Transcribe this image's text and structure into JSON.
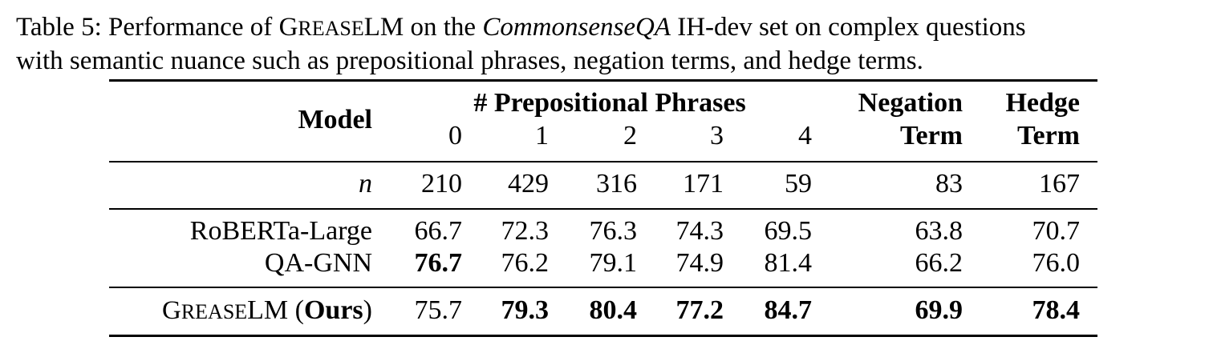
{
  "caption": {
    "prefix": "Table 5:  Performance of ",
    "model_name_G": "G",
    "model_name_REASE": "REASE",
    "model_name_LM": "LM",
    "mid1": " on the ",
    "dataset": "CommonsenseQA",
    "mid2": " IH-dev set on complex questions",
    "line2": "with semantic nuance such as prepositional phrases, negation terms, and hedge terms."
  },
  "header": {
    "model": "Model",
    "pp_group": "# Prepositional Phrases",
    "pp_cols": [
      "0",
      "1",
      "2",
      "3",
      "4"
    ],
    "negation_top": "Negation",
    "negation_bottom": "Term",
    "hedge_top": "Hedge",
    "hedge_bottom": "Term"
  },
  "n_row": {
    "label": "n",
    "values": [
      "210",
      "429",
      "316",
      "171",
      "59",
      "83",
      "167"
    ]
  },
  "rows": [
    {
      "model": "RoBERTa-Large",
      "values": [
        "66.7",
        "72.3",
        "76.3",
        "74.3",
        "69.5",
        "63.8",
        "70.7"
      ]
    },
    {
      "model": "QA-GNN",
      "values": [
        "76.7",
        "76.2",
        "79.1",
        "74.9",
        "81.4",
        "66.2",
        "76.0"
      ]
    }
  ],
  "ours": {
    "model_G": "G",
    "model_REASE": "REASE",
    "model_LM": "LM",
    "suffix_open": " (",
    "suffix_bold": "Ours",
    "suffix_close": ")",
    "values": [
      "75.7",
      "79.3",
      "80.4",
      "77.2",
      "84.7",
      "69.9",
      "78.4"
    ]
  }
}
